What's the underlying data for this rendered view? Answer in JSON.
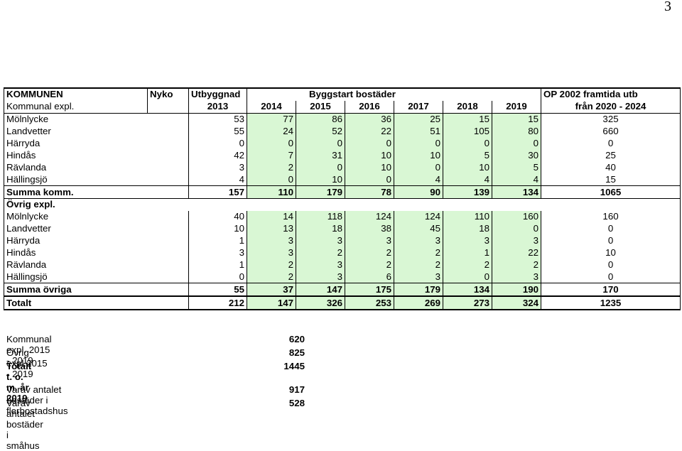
{
  "page_number": "3",
  "table": {
    "header1": {
      "c0": "KOMMUNEN",
      "c1": "Nyko",
      "c2": "Utbyggnad",
      "span_title": "Byggstart bostäder",
      "last": "OP 2002 framtida utb"
    },
    "header2": {
      "c0": "Kommunal expl.",
      "years": [
        "2013",
        "2014",
        "2015",
        "2016",
        "2017",
        "2018",
        "2019"
      ],
      "last": "från 2020 - 2024"
    },
    "kommunal_rows": [
      {
        "label": "Mölnlycke",
        "values": [
          "53",
          "77",
          "86",
          "36",
          "25",
          "15",
          "15"
        ],
        "last": "325"
      },
      {
        "label": "Landvetter",
        "values": [
          "55",
          "24",
          "52",
          "22",
          "51",
          "105",
          "80"
        ],
        "last": "660"
      },
      {
        "label": "Härryda",
        "values": [
          "0",
          "0",
          "0",
          "0",
          "0",
          "0",
          "0"
        ],
        "last": "0"
      },
      {
        "label": "Hindås",
        "values": [
          "42",
          "7",
          "31",
          "10",
          "10",
          "5",
          "30"
        ],
        "last": "25"
      },
      {
        "label": "Rävlanda",
        "values": [
          "3",
          "2",
          "0",
          "10",
          "0",
          "10",
          "5"
        ],
        "last": "40"
      },
      {
        "label": "Hällingsjö",
        "values": [
          "4",
          "0",
          "10",
          "0",
          "4",
          "4",
          "4"
        ],
        "last": "15"
      }
    ],
    "summa_komm": {
      "label": "Summa komm.",
      "values": [
        "157",
        "110",
        "179",
        "78",
        "90",
        "139",
        "134"
      ],
      "last": "1065"
    },
    "ovrig_header": "Övrig expl.",
    "ovrig_rows": [
      {
        "label": "Mölnlycke",
        "values": [
          "40",
          "14",
          "118",
          "124",
          "124",
          "110",
          "160"
        ],
        "last": "160"
      },
      {
        "label": "Landvetter",
        "values": [
          "10",
          "13",
          "18",
          "38",
          "45",
          "18",
          "0"
        ],
        "last": "0"
      },
      {
        "label": "Härryda",
        "values": [
          "1",
          "3",
          "3",
          "3",
          "3",
          "3",
          "3"
        ],
        "last": "0"
      },
      {
        "label": "Hindås",
        "values": [
          "3",
          "3",
          "2",
          "2",
          "2",
          "1",
          "22"
        ],
        "last": "10"
      },
      {
        "label": "Rävlanda",
        "values": [
          "1",
          "2",
          "3",
          "2",
          "2",
          "2",
          "2"
        ],
        "last": "0"
      },
      {
        "label": "Hällingsjö",
        "values": [
          "0",
          "2",
          "3",
          "6",
          "3",
          "0",
          "3"
        ],
        "last": "0"
      }
    ],
    "summa_ovriga": {
      "label": "Summa övriga",
      "values": [
        "55",
        "37",
        "147",
        "175",
        "179",
        "134",
        "190"
      ],
      "last": "170"
    },
    "totalt": {
      "label": "Totalt",
      "values": [
        "212",
        "147",
        "326",
        "253",
        "269",
        "273",
        "324"
      ],
      "last": "1235"
    }
  },
  "summary": [
    {
      "label": "Kommunal expl. 2015 - 2019",
      "value": "620",
      "bold_label": false
    },
    {
      "label": "Övrig expl.2015 - 2019",
      "value": "825",
      "bold_label": false
    },
    {
      "label": "Totalt t. o. m. år 2019",
      "value": "1445",
      "bold_label": true
    }
  ],
  "summary2": [
    {
      "label": "Varav antalet bostäder i flerbostadshus",
      "value": "917"
    },
    {
      "label": "Varav antalet bostäder i småhus",
      "value": "528"
    }
  ],
  "colors": {
    "green_fill": "#d9f7d4"
  }
}
